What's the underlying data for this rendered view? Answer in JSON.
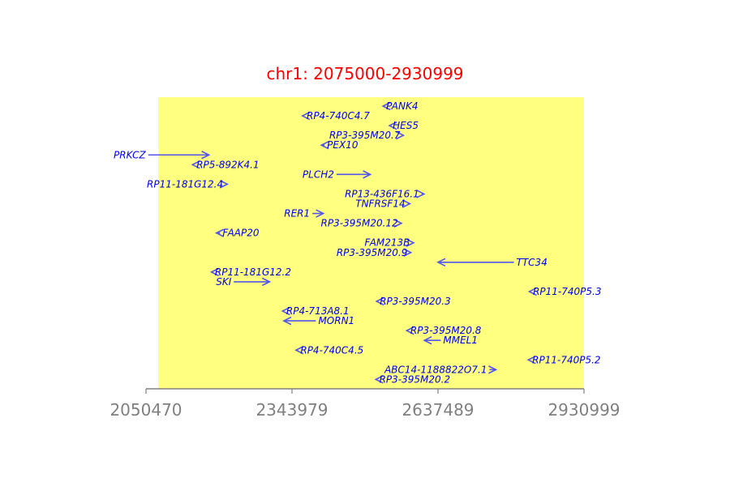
{
  "chart_data": {
    "type": "genome-track",
    "title": "chr1: 2075000-2930999",
    "xlim": [
      2050470,
      2930999
    ],
    "highlight_region": [
      2075000,
      2930999
    ],
    "ticks": [
      {
        "value": 2050470,
        "label": "2050470"
      },
      {
        "value": 2343979,
        "label": "2343979"
      },
      {
        "value": 2637489,
        "label": "2637489"
      },
      {
        "value": 2930999,
        "label": "2930999"
      }
    ],
    "colors": {
      "title": "#ff0000",
      "highlight": "#ffff80",
      "arrow": "#5555ee",
      "label": "#0000ee",
      "axis": "#808080"
    },
    "genes": [
      {
        "name": "PANK4",
        "start": 2527000,
        "end": 2528500,
        "strand": "-",
        "row": 0,
        "label_side": "right"
      },
      {
        "name": "RP4-740C4.7",
        "start": 2365000,
        "end": 2368500,
        "strand": "-",
        "row": 1,
        "label_side": "right"
      },
      {
        "name": "HES5",
        "start": 2540000,
        "end": 2541500,
        "strand": "-",
        "row": 2,
        "label_side": "right"
      },
      {
        "name": "RP3-395M20.7",
        "start": 2566500,
        "end": 2568000,
        "strand": "+",
        "row": 3,
        "label_side": "left"
      },
      {
        "name": "PEX10",
        "start": 2403000,
        "end": 2409500,
        "strand": "-",
        "row": 4,
        "label_side": "right"
      },
      {
        "name": "PRKCZ",
        "start": 2055000,
        "end": 2177000,
        "strand": "+",
        "row": 5,
        "label_side": "left"
      },
      {
        "name": "RP5-892K4.1",
        "start": 2144000,
        "end": 2147000,
        "strand": "-",
        "row": 6,
        "label_side": "right"
      },
      {
        "name": "PLCH2",
        "start": 2433500,
        "end": 2501500,
        "strand": "+",
        "row": 7,
        "label_side": "left"
      },
      {
        "name": "RP11-181G12.4",
        "start": 2210500,
        "end": 2214000,
        "strand": "+",
        "row": 8,
        "label_side": "left"
      },
      {
        "name": "RP13-436F16.1",
        "start": 2604500,
        "end": 2609500,
        "strand": "+",
        "row": 9,
        "label_side": "left"
      },
      {
        "name": "TNFRSF14",
        "start": 2576500,
        "end": 2581000,
        "strand": "+",
        "row": 10,
        "label_side": "left"
      },
      {
        "name": "RER1",
        "start": 2385000,
        "end": 2407000,
        "strand": "+",
        "row": 11,
        "label_side": "left"
      },
      {
        "name": "RP3-395M20.12",
        "start": 2562000,
        "end": 2564000,
        "strand": "+",
        "row": 12,
        "label_side": "left"
      },
      {
        "name": "FAAP20",
        "start": 2192000,
        "end": 2199500,
        "strand": "-",
        "row": 13,
        "label_side": "right"
      },
      {
        "name": "FAM213B",
        "start": 2586000,
        "end": 2588500,
        "strand": "+",
        "row": 14,
        "label_side": "left"
      },
      {
        "name": "RP3-395M20.9",
        "start": 2581000,
        "end": 2583000,
        "strand": "+",
        "row": 15,
        "label_side": "left"
      },
      {
        "name": "TTC34",
        "start": 2637500,
        "end": 2790000,
        "strand": "-",
        "row": 16,
        "label_side": "right"
      },
      {
        "name": "RP11-181G12.2",
        "start": 2182000,
        "end": 2184000,
        "strand": "-",
        "row": 17,
        "label_side": "right"
      },
      {
        "name": "SKI",
        "start": 2227000,
        "end": 2299000,
        "strand": "+",
        "row": 18,
        "label_side": "left"
      },
      {
        "name": "RP11-740P5.3",
        "start": 2821000,
        "end": 2823500,
        "strand": "-",
        "row": 19,
        "label_side": "right"
      },
      {
        "name": "RP3-395M20.3",
        "start": 2514000,
        "end": 2515500,
        "strand": "-",
        "row": 20,
        "label_side": "right"
      },
      {
        "name": "RP4-713A8.1",
        "start": 2325000,
        "end": 2327500,
        "strand": "-",
        "row": 21,
        "label_side": "right"
      },
      {
        "name": "MORN1",
        "start": 2327500,
        "end": 2392000,
        "strand": "-",
        "row": 22,
        "label_side": "right"
      },
      {
        "name": "RP3-395M20.8",
        "start": 2574500,
        "end": 2577000,
        "strand": "-",
        "row": 23,
        "label_side": "right"
      },
      {
        "name": "MMEL1",
        "start": 2610000,
        "end": 2643000,
        "strand": "-",
        "row": 24,
        "label_side": "right"
      },
      {
        "name": "RP4-740C4.5",
        "start": 2352000,
        "end": 2356000,
        "strand": "-",
        "row": 25,
        "label_side": "right"
      },
      {
        "name": "RP11-740P5.2",
        "start": 2819000,
        "end": 2822000,
        "strand": "-",
        "row": 26,
        "label_side": "right"
      },
      {
        "name": "ABC14-1188822O7.1",
        "start": 2741000,
        "end": 2754000,
        "strand": "+",
        "row": 27,
        "label_side": "left"
      },
      {
        "name": "RP3-395M20.2",
        "start": 2512500,
        "end": 2514500,
        "strand": "-",
        "row": 28,
        "label_side": "right"
      }
    ]
  }
}
